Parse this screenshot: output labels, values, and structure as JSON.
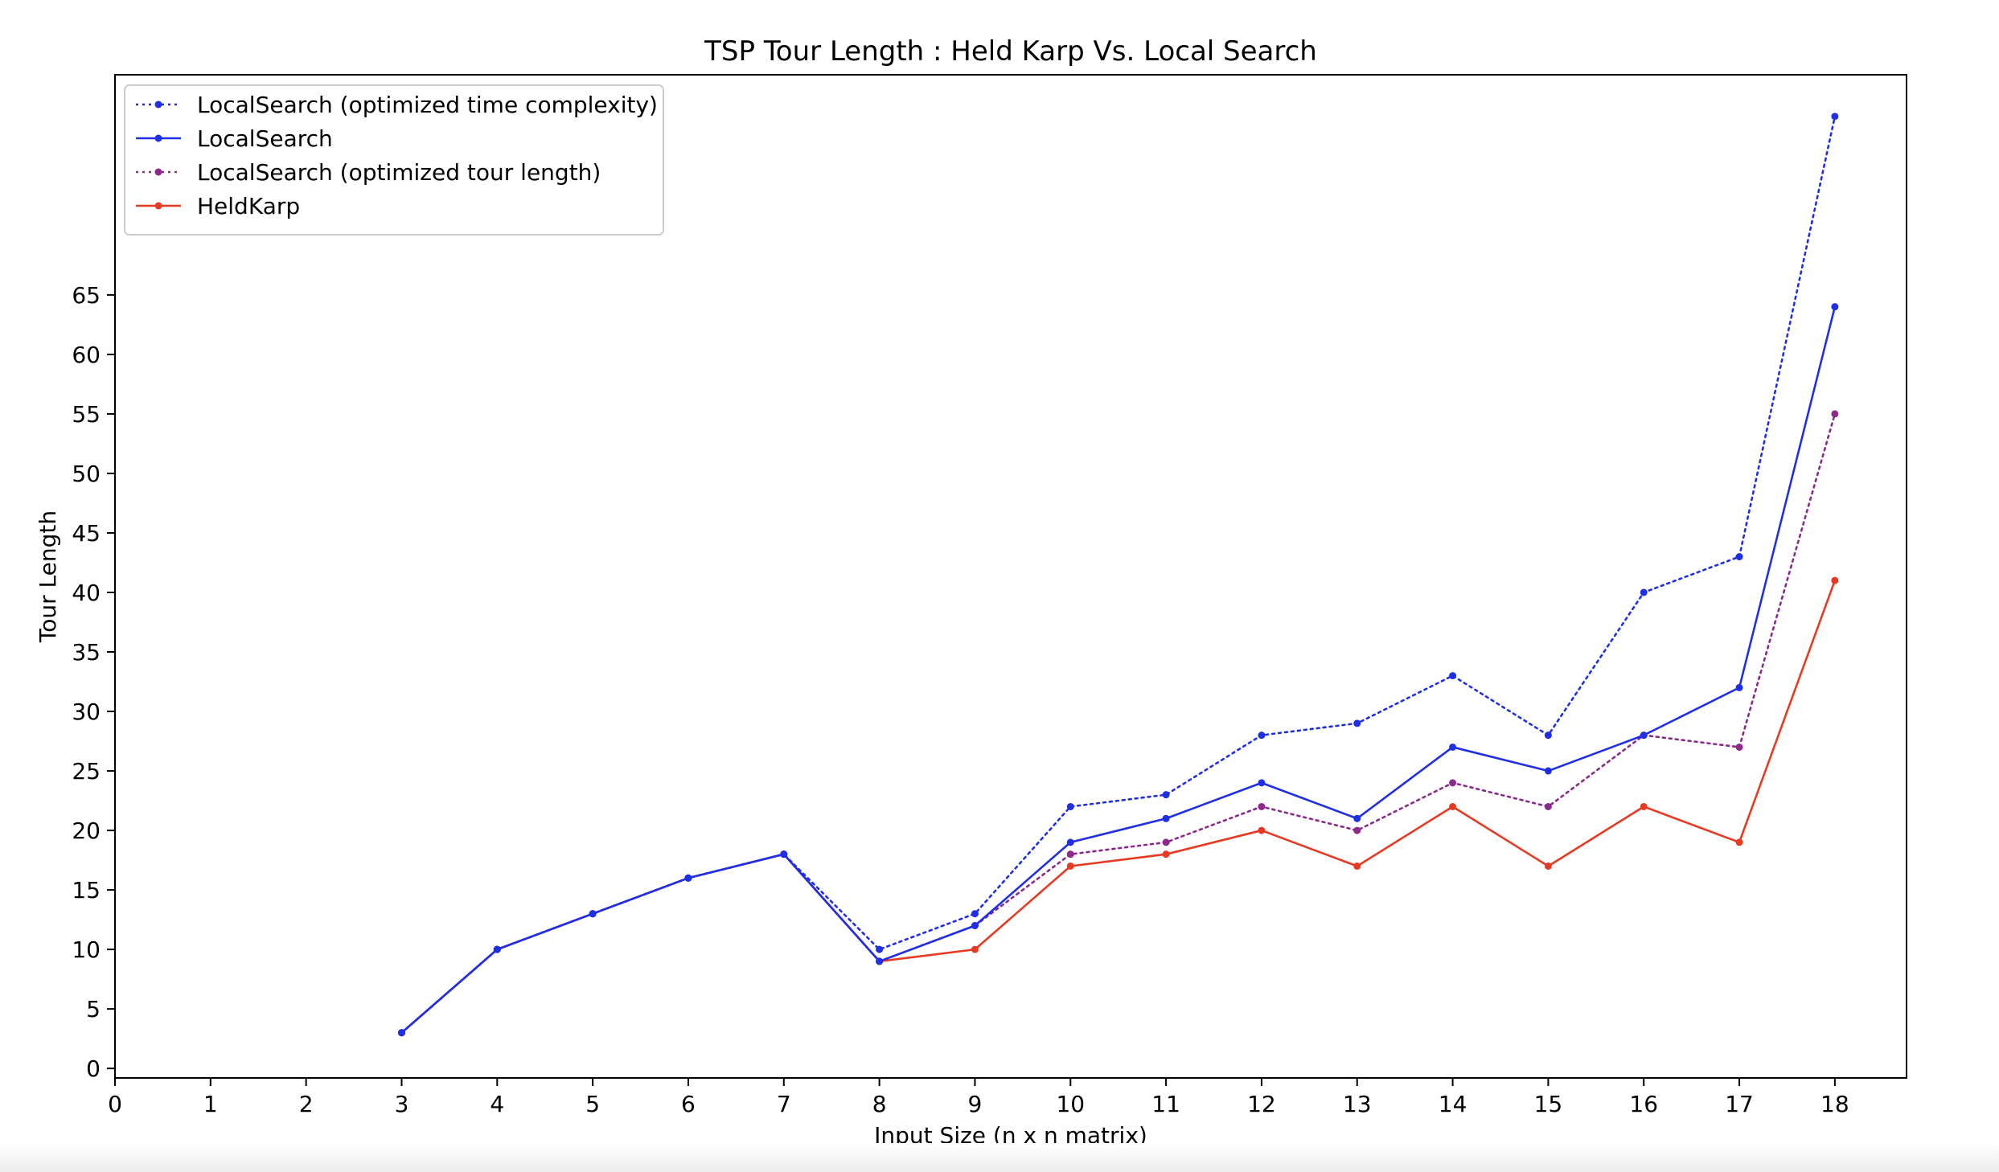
{
  "chart_data": {
    "type": "line",
    "title": "TSP Tour Length : Held Karp Vs. Local Search",
    "xlabel": "Input Size (n x n matrix)",
    "ylabel": "Tour Length",
    "xlim": [
      0,
      18.75
    ],
    "ylim": [
      -0.8,
      83.5
    ],
    "xticks": [
      "0",
      "1",
      "2",
      "3",
      "4",
      "5",
      "6",
      "7",
      "8",
      "9",
      "10",
      "11",
      "12",
      "13",
      "14",
      "15",
      "16",
      "17",
      "18"
    ],
    "yticks": [
      "0",
      "5",
      "10",
      "15",
      "20",
      "25",
      "30",
      "35",
      "40",
      "45",
      "50",
      "55",
      "60",
      "65"
    ],
    "grid": false,
    "legend_position": "top-left",
    "x": [
      3,
      4,
      5,
      6,
      7,
      8,
      9,
      10,
      11,
      12,
      13,
      14,
      15,
      16,
      17,
      18
    ],
    "series": [
      {
        "name": "LocalSearch (optimized time complexity)",
        "color": "#1f2fe6",
        "style": "dotted",
        "values": [
          3,
          10,
          13,
          16,
          18,
          10,
          13,
          22,
          23,
          28,
          29,
          33,
          28,
          40,
          43,
          80
        ]
      },
      {
        "name": "LocalSearch",
        "color": "#1f2fe6",
        "style": "solid",
        "values": [
          3,
          10,
          13,
          16,
          18,
          9,
          12,
          19,
          21,
          24,
          21,
          27,
          25,
          28,
          32,
          64
        ]
      },
      {
        "name": "LocalSearch (optimized tour length)",
        "color": "#8b2a8b",
        "style": "dotted",
        "values": [
          3,
          10,
          13,
          16,
          18,
          9,
          12,
          18,
          19,
          22,
          20,
          24,
          22,
          28,
          27,
          55
        ]
      },
      {
        "name": "HeldKarp",
        "color": "#e83a22",
        "style": "solid",
        "values": [
          3,
          10,
          13,
          16,
          18,
          9,
          10,
          17,
          18,
          20,
          17,
          22,
          17,
          22,
          19,
          41
        ]
      }
    ]
  }
}
